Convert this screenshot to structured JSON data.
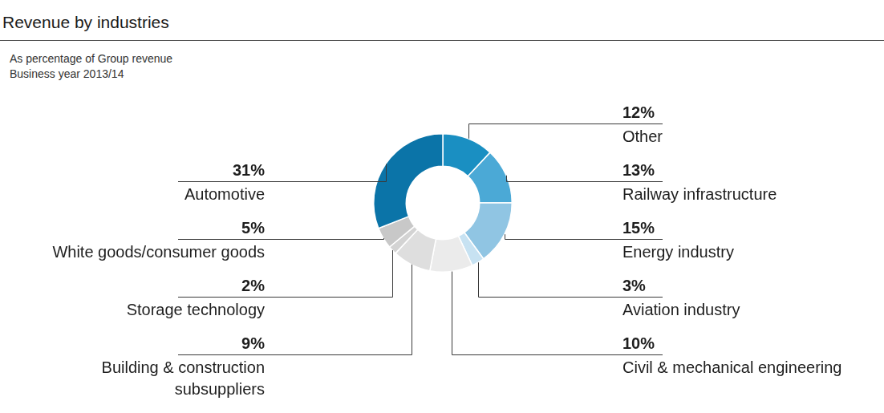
{
  "chart_data": {
    "type": "doughnut",
    "title": "Revenue by industries",
    "subtitle": [
      "As percentage of Group revenue",
      "Business year 2013/14"
    ],
    "categories": [
      "Other",
      "Railway infrastructure",
      "Energy industry",
      "Aviation industry",
      "Civil & mechanical engineering",
      "Building & construction subsuppliers",
      "Storage technology",
      "White goods/consumer goods",
      "Automotive"
    ],
    "values": [
      12,
      13,
      15,
      3,
      10,
      9,
      2,
      5,
      31
    ],
    "value_labels": [
      "12%",
      "13%",
      "15%",
      "3%",
      "10%",
      "9%",
      "2%",
      "5%",
      "31%"
    ],
    "colors": [
      "#1a8fc2",
      "#4ba9d6",
      "#90c5e3",
      "#c7e2f2",
      "#ebebeb",
      "#dedede",
      "#d3d3d3",
      "#c8c8c8",
      "#0b74a8"
    ],
    "data_labels": true
  }
}
